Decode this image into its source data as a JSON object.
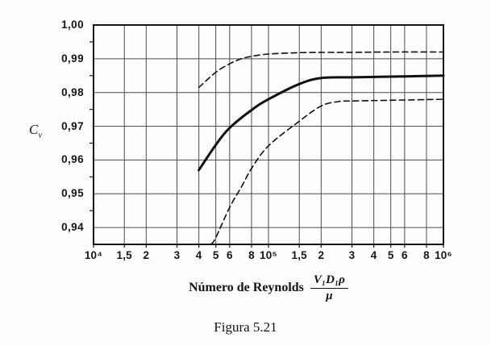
{
  "figure": {
    "caption": "Figura 5.21"
  },
  "chart_data": {
    "type": "line",
    "title": "",
    "xlabel": "Número de Reynolds",
    "xlabel_formula_numerator": "V₁D₁ρ",
    "xlabel_formula_denominator": "μ",
    "ylabel_main": "C",
    "ylabel_sub": "v",
    "x_scale": "log",
    "xlim": [
      10000,
      1000000
    ],
    "ylim": [
      0.935,
      1.0
    ],
    "grid": "on",
    "legend": "none",
    "x_ticks": [
      {
        "value": 10000,
        "label": "10⁴"
      },
      {
        "value": 15000,
        "label": "1,5"
      },
      {
        "value": 20000,
        "label": "2"
      },
      {
        "value": 30000,
        "label": "3"
      },
      {
        "value": 40000,
        "label": "4"
      },
      {
        "value": 50000,
        "label": "5"
      },
      {
        "value": 60000,
        "label": "6"
      },
      {
        "value": 80000,
        "label": "8"
      },
      {
        "value": 100000,
        "label": "10⁵"
      },
      {
        "value": 150000,
        "label": "1,5"
      },
      {
        "value": 200000,
        "label": "2"
      },
      {
        "value": 300000,
        "label": "3"
      },
      {
        "value": 400000,
        "label": "4"
      },
      {
        "value": 500000,
        "label": "5"
      },
      {
        "value": 600000,
        "label": "6"
      },
      {
        "value": 800000,
        "label": "8"
      },
      {
        "value": 1000000,
        "label": "10⁶"
      }
    ],
    "y_ticks": [
      {
        "value": 1.0,
        "label": "1,00"
      },
      {
        "value": 0.99,
        "label": "0,99"
      },
      {
        "value": 0.98,
        "label": "0,98"
      },
      {
        "value": 0.97,
        "label": "0,97"
      },
      {
        "value": 0.96,
        "label": "0,96"
      },
      {
        "value": 0.95,
        "label": "0,95"
      },
      {
        "value": 0.94,
        "label": "0,94"
      }
    ],
    "y_minor_ticks": [
      0.995,
      0.985,
      0.975,
      0.965,
      0.955,
      0.945
    ],
    "series": [
      {
        "name": "upper-envelope-dashed",
        "style": "dashed",
        "x": [
          40000,
          50000,
          60000,
          70000,
          80000,
          100000,
          150000,
          200000,
          300000,
          500000,
          1000000
        ],
        "y": [
          0.9815,
          0.986,
          0.9885,
          0.99,
          0.9907,
          0.9914,
          0.9918,
          0.9919,
          0.9919,
          0.992,
          0.992
        ]
      },
      {
        "name": "mean-curve-solid",
        "style": "solid",
        "x": [
          40000,
          50000,
          60000,
          80000,
          100000,
          150000,
          200000,
          300000,
          500000,
          1000000
        ],
        "y": [
          0.957,
          0.9645,
          0.9695,
          0.9748,
          0.978,
          0.9825,
          0.9843,
          0.9845,
          0.9847,
          0.985
        ]
      },
      {
        "name": "lower-envelope-dashed",
        "style": "dashed",
        "x": [
          47000,
          50000,
          60000,
          70000,
          80000,
          100000,
          150000,
          200000,
          250000,
          300000,
          500000,
          1000000
        ],
        "y": [
          0.935,
          0.937,
          0.946,
          0.952,
          0.9575,
          0.9642,
          0.9715,
          0.976,
          0.9773,
          0.9775,
          0.9777,
          0.978
        ]
      }
    ],
    "colors": {
      "curve": "#101010",
      "grid": "#4c4c4c",
      "frame": "#161616",
      "background": "#fdfdfc"
    }
  }
}
